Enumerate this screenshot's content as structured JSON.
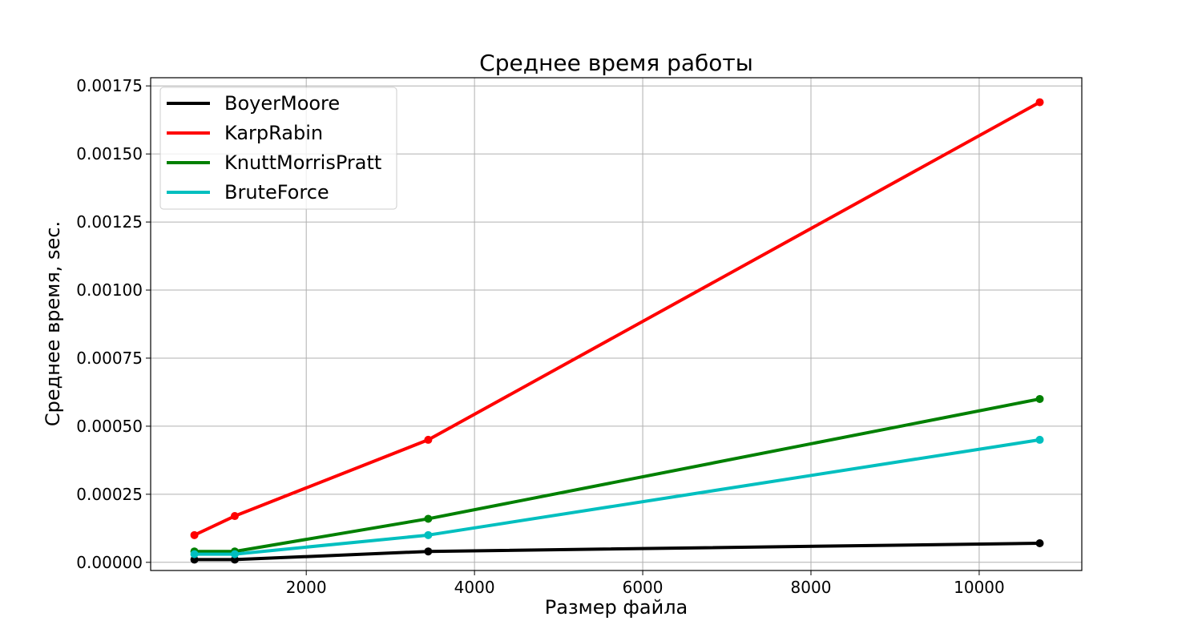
{
  "chart_data": {
    "type": "line",
    "title": "Среднее время работы",
    "xlabel": "Размер файла",
    "ylabel": "Среднее время, sec.",
    "xlim": [
      150,
      11220
    ],
    "ylim": [
      -3e-05,
      0.00178
    ],
    "xticks": [
      2000,
      4000,
      6000,
      8000,
      10000
    ],
    "xtick_labels": [
      "2000",
      "4000",
      "6000",
      "8000",
      "10000"
    ],
    "yticks": [
      0,
      0.00025,
      0.0005,
      0.00075,
      0.001,
      0.00125,
      0.0015,
      0.00175
    ],
    "ytick_labels": [
      "0.00000",
      "0.00025",
      "0.00050",
      "0.00075",
      "0.00100",
      "0.00125",
      "0.00150",
      "0.00175"
    ],
    "grid": true,
    "legend_position": "top-left",
    "x": [
      670,
      1150,
      3450,
      10720
    ],
    "series": [
      {
        "name": "BoyerMoore",
        "color": "#000000",
        "values": [
          1e-05,
          1e-05,
          4e-05,
          7e-05
        ]
      },
      {
        "name": "KarpRabin",
        "color": "#ff0000",
        "values": [
          0.0001,
          0.00017,
          0.00045,
          0.00169
        ]
      },
      {
        "name": "KnuttMorrisPratt",
        "color": "#008000",
        "values": [
          4e-05,
          4e-05,
          0.00016,
          0.0006
        ]
      },
      {
        "name": "BruteForce",
        "color": "#00bfbf",
        "values": [
          3e-05,
          3e-05,
          0.0001,
          0.00045
        ]
      }
    ]
  }
}
